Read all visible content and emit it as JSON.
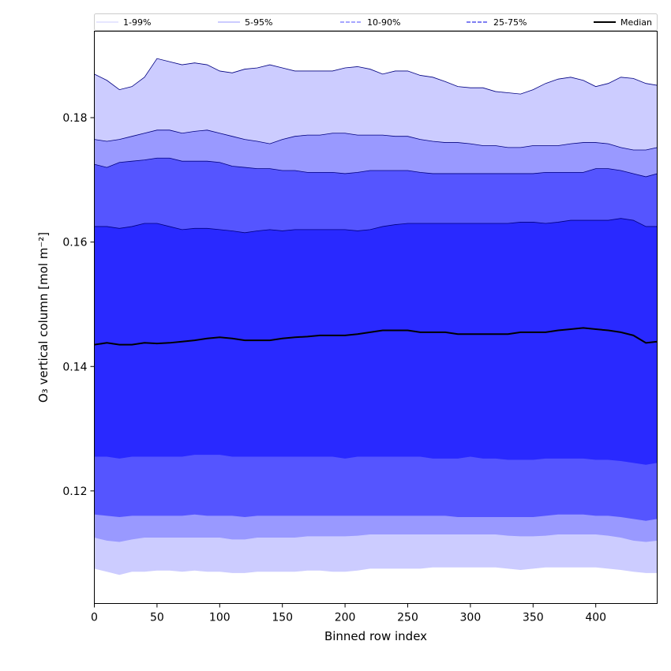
{
  "chart_data": {
    "type": "area",
    "title": "",
    "xlabel": "Binned row index",
    "ylabel": "O₃ vertical column [mol m⁻²]",
    "xlim": [
      0,
      449
    ],
    "ylim": [
      0.1019,
      0.1939
    ],
    "xticks": [
      0,
      50,
      100,
      150,
      200,
      250,
      300,
      350,
      400
    ],
    "yticks": [
      0.12,
      0.14,
      0.16,
      0.18
    ],
    "ytick_labels": [
      "0.12",
      "0.14",
      "0.16",
      "0.18"
    ],
    "legend_position": "top",
    "x": [
      0,
      10,
      20,
      30,
      40,
      50,
      60,
      70,
      80,
      90,
      100,
      110,
      120,
      130,
      140,
      150,
      160,
      170,
      180,
      190,
      200,
      210,
      220,
      230,
      240,
      250,
      260,
      270,
      280,
      290,
      300,
      310,
      320,
      330,
      340,
      350,
      360,
      370,
      380,
      390,
      400,
      410,
      420,
      430,
      440,
      449
    ],
    "series": [
      {
        "name": "1-99%",
        "color": "#ccccff",
        "lower": [
          0.1075,
          0.107,
          0.1065,
          0.107,
          0.107,
          0.1072,
          0.1072,
          0.107,
          0.1072,
          0.107,
          0.107,
          0.1068,
          0.1068,
          0.107,
          0.107,
          0.107,
          0.107,
          0.1072,
          0.1072,
          0.107,
          0.107,
          0.1072,
          0.1075,
          0.1075,
          0.1075,
          0.1075,
          0.1075,
          0.1077,
          0.1077,
          0.1077,
          0.1077,
          0.1077,
          0.1077,
          0.1075,
          0.1073,
          0.1075,
          0.1077,
          0.1077,
          0.1077,
          0.1077,
          0.1077,
          0.1075,
          0.1073,
          0.107,
          0.1068,
          0.1068
        ],
        "upper": [
          0.187,
          0.186,
          0.1845,
          0.185,
          0.1865,
          0.1895,
          0.189,
          0.1885,
          0.1888,
          0.1885,
          0.1875,
          0.1872,
          0.1878,
          0.188,
          0.1885,
          0.188,
          0.1875,
          0.1875,
          0.1875,
          0.1875,
          0.188,
          0.1882,
          0.1878,
          0.187,
          0.1875,
          0.1875,
          0.1868,
          0.1865,
          0.1858,
          0.185,
          0.1848,
          0.1848,
          0.1842,
          0.184,
          0.1838,
          0.1845,
          0.1855,
          0.1862,
          0.1865,
          0.186,
          0.185,
          0.1855,
          0.1865,
          0.1863,
          0.1855,
          0.1852
        ]
      },
      {
        "name": "5-95%",
        "color": "#9999ff",
        "lower": [
          0.1125,
          0.112,
          0.1118,
          0.1122,
          0.1125,
          0.1125,
          0.1125,
          0.1125,
          0.1125,
          0.1125,
          0.1125,
          0.1122,
          0.1122,
          0.1125,
          0.1125,
          0.1125,
          0.1125,
          0.1127,
          0.1127,
          0.1127,
          0.1127,
          0.1128,
          0.113,
          0.113,
          0.113,
          0.113,
          0.113,
          0.113,
          0.113,
          0.113,
          0.113,
          0.113,
          0.113,
          0.1128,
          0.1127,
          0.1127,
          0.1128,
          0.113,
          0.113,
          0.113,
          0.113,
          0.1128,
          0.1125,
          0.112,
          0.1118,
          0.112
        ],
        "upper": [
          0.1765,
          0.1762,
          0.1765,
          0.177,
          0.1775,
          0.178,
          0.178,
          0.1775,
          0.1778,
          0.178,
          0.1775,
          0.177,
          0.1765,
          0.1762,
          0.1758,
          0.1765,
          0.177,
          0.1772,
          0.1772,
          0.1775,
          0.1775,
          0.1772,
          0.1772,
          0.1772,
          0.177,
          0.177,
          0.1765,
          0.1762,
          0.176,
          0.176,
          0.1758,
          0.1755,
          0.1755,
          0.1752,
          0.1752,
          0.1755,
          0.1755,
          0.1755,
          0.1758,
          0.176,
          0.176,
          0.1758,
          0.1752,
          0.1748,
          0.1748,
          0.1752
        ]
      },
      {
        "name": "10-90%",
        "color": "#5555ff",
        "lower": [
          0.1162,
          0.116,
          0.1158,
          0.116,
          0.116,
          0.116,
          0.116,
          0.116,
          0.1162,
          0.116,
          0.116,
          0.116,
          0.1158,
          0.116,
          0.116,
          0.116,
          0.116,
          0.116,
          0.116,
          0.116,
          0.116,
          0.116,
          0.116,
          0.116,
          0.116,
          0.116,
          0.116,
          0.116,
          0.116,
          0.1158,
          0.1158,
          0.1158,
          0.1158,
          0.1158,
          0.1158,
          0.1158,
          0.116,
          0.1162,
          0.1162,
          0.1162,
          0.116,
          0.116,
          0.1158,
          0.1155,
          0.1152,
          0.1155
        ],
        "upper": [
          0.1725,
          0.172,
          0.1728,
          0.173,
          0.1732,
          0.1735,
          0.1735,
          0.173,
          0.173,
          0.173,
          0.1728,
          0.1722,
          0.172,
          0.1718,
          0.1718,
          0.1715,
          0.1715,
          0.1712,
          0.1712,
          0.1712,
          0.171,
          0.1712,
          0.1715,
          0.1715,
          0.1715,
          0.1715,
          0.1712,
          0.171,
          0.171,
          0.171,
          0.171,
          0.171,
          0.171,
          0.171,
          0.171,
          0.171,
          0.1712,
          0.1712,
          0.1712,
          0.1712,
          0.1718,
          0.1718,
          0.1715,
          0.171,
          0.1705,
          0.171
        ]
      },
      {
        "name": "25-75%",
        "color": "#2929ff",
        "lower": [
          0.1255,
          0.1255,
          0.1252,
          0.1255,
          0.1255,
          0.1255,
          0.1255,
          0.1255,
          0.1258,
          0.1258,
          0.1258,
          0.1255,
          0.1255,
          0.1255,
          0.1255,
          0.1255,
          0.1255,
          0.1255,
          0.1255,
          0.1255,
          0.1252,
          0.1255,
          0.1255,
          0.1255,
          0.1255,
          0.1255,
          0.1255,
          0.1252,
          0.1252,
          0.1252,
          0.1255,
          0.1252,
          0.1252,
          0.125,
          0.125,
          0.125,
          0.1252,
          0.1252,
          0.1252,
          0.1252,
          0.125,
          0.125,
          0.1248,
          0.1245,
          0.1242,
          0.1245
        ],
        "upper": [
          0.1625,
          0.1625,
          0.1622,
          0.1625,
          0.163,
          0.163,
          0.1625,
          0.162,
          0.1622,
          0.1622,
          0.162,
          0.1618,
          0.1615,
          0.1618,
          0.162,
          0.1618,
          0.162,
          0.162,
          0.162,
          0.162,
          0.162,
          0.1618,
          0.162,
          0.1625,
          0.1628,
          0.163,
          0.163,
          0.163,
          0.163,
          0.163,
          0.163,
          0.163,
          0.163,
          0.163,
          0.1632,
          0.1632,
          0.163,
          0.1632,
          0.1635,
          0.1635,
          0.1635,
          0.1635,
          0.1638,
          0.1635,
          0.1625,
          0.1625
        ]
      },
      {
        "name": "Median",
        "color": "#000000",
        "values": [
          0.1435,
          0.1438,
          0.1435,
          0.1435,
          0.1438,
          0.1437,
          0.1438,
          0.144,
          0.1442,
          0.1445,
          0.1447,
          0.1445,
          0.1442,
          0.1442,
          0.1442,
          0.1445,
          0.1447,
          0.1448,
          0.145,
          0.145,
          0.145,
          0.1452,
          0.1455,
          0.1458,
          0.1458,
          0.1458,
          0.1455,
          0.1455,
          0.1455,
          0.1452,
          0.1452,
          0.1452,
          0.1452,
          0.1452,
          0.1455,
          0.1455,
          0.1455,
          0.1458,
          0.146,
          0.1462,
          0.146,
          0.1458,
          0.1455,
          0.145,
          0.1438,
          0.144
        ]
      }
    ]
  }
}
